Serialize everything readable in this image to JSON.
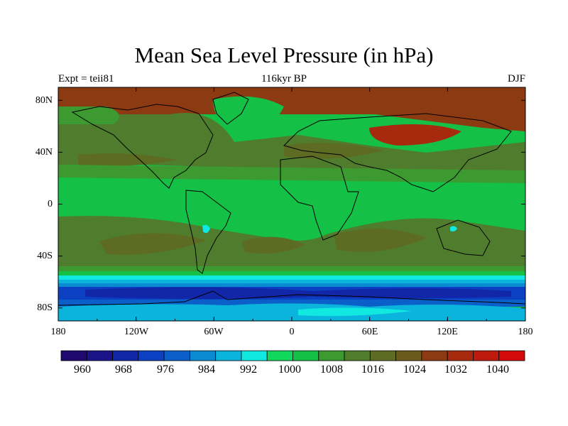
{
  "title": "Mean Sea Level Pressure (in hPa)",
  "left_string": "Expt = teii81",
  "center_string": "116kyr BP",
  "right_string": "DJF",
  "map": {
    "type": "filled-contour map",
    "projection": "cylindrical equidistant",
    "lon_range": [
      -180,
      180
    ],
    "lat_range": [
      -90,
      90
    ],
    "x_ticks": [
      {
        "lon": -180,
        "label": "180"
      },
      {
        "lon": -120,
        "label": "120W"
      },
      {
        "lon": -60,
        "label": "60W"
      },
      {
        "lon": 0,
        "label": "0"
      },
      {
        "lon": 60,
        "label": "60E"
      },
      {
        "lon": 120,
        "label": "120E"
      },
      {
        "lon": 180,
        "label": "180"
      }
    ],
    "y_ticks": [
      {
        "lat": 80,
        "label": "80N"
      },
      {
        "lat": 40,
        "label": "40N"
      },
      {
        "lat": 0,
        "label": "0"
      },
      {
        "lat": -40,
        "label": "40S"
      },
      {
        "lat": -80,
        "label": "80S"
      }
    ]
  },
  "colorbar": {
    "labels": [
      "960",
      "968",
      "976",
      "984",
      "992",
      "1000",
      "1008",
      "1016",
      "1024",
      "1032",
      "1040"
    ],
    "colors": [
      "#1e0a6e",
      "#1a1488",
      "#1226a8",
      "#0c40c2",
      "#0a60c8",
      "#0a8ad0",
      "#0ab4dc",
      "#10e8e0",
      "#10d85c",
      "#14c046",
      "#3c9a30",
      "#4f7d2d",
      "#5e6b22",
      "#6a5a1c",
      "#8c3a12",
      "#a82a0e",
      "#be1a0e",
      "#d40a0a"
    ]
  }
}
